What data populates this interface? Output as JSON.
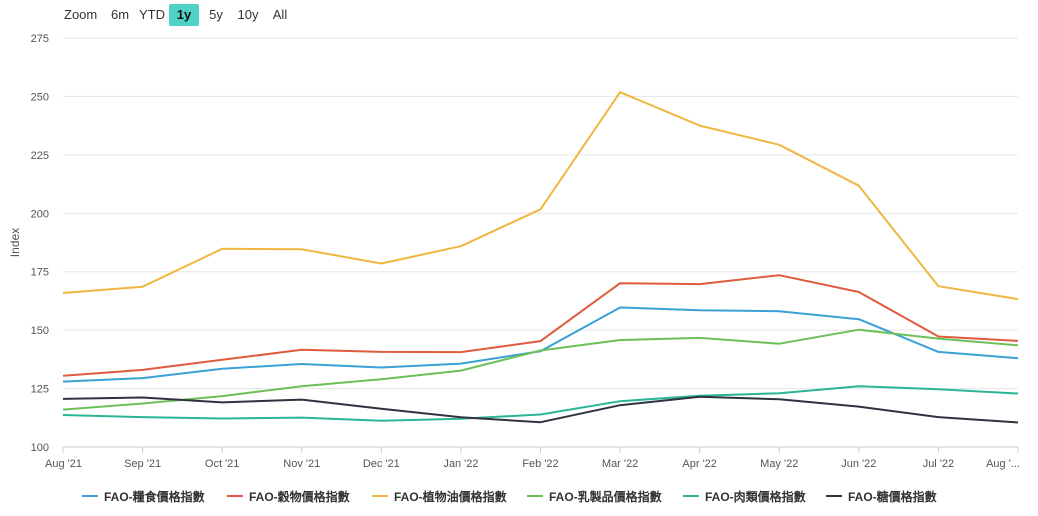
{
  "zoom": {
    "label": "Zoom",
    "options": [
      "6m",
      "YTD",
      "1y",
      "5y",
      "10y",
      "All"
    ],
    "selected": "1y"
  },
  "chart_data": {
    "type": "line",
    "title": "",
    "xlabel": "",
    "ylabel": "Index",
    "ylim": [
      100,
      275
    ],
    "yticks": [
      100,
      125,
      150,
      175,
      200,
      225,
      250,
      275
    ],
    "categories": [
      "Aug '21",
      "Sep '21",
      "Oct '21",
      "Nov '21",
      "Dec '21",
      "Jan '22",
      "Feb '22",
      "Mar '22",
      "Apr '22",
      "May '22",
      "Jun '22",
      "Jul '22",
      "Aug '..."
    ],
    "grid": true,
    "legend_position": "bottom",
    "series": [
      {
        "name": "FAO-糧食價格指數",
        "color": "#3aa0d5",
        "values": [
          128.0,
          129.5,
          133.5,
          135.5,
          134.0,
          135.7,
          141.0,
          159.7,
          158.5,
          158.1,
          154.7,
          140.7,
          138.0
        ]
      },
      {
        "name": "FAO-穀物價格指數",
        "color": "#e05a3f",
        "values": [
          130.5,
          133.0,
          137.3,
          141.6,
          140.7,
          140.6,
          145.3,
          170.1,
          169.7,
          173.5,
          166.3,
          147.3,
          145.4
        ]
      },
      {
        "name": "FAO-植物油價格指數",
        "color": "#f0b740",
        "values": [
          165.9,
          168.6,
          184.8,
          184.6,
          178.5,
          185.9,
          201.7,
          251.8,
          237.5,
          229.3,
          211.8,
          168.8,
          163.3
        ]
      },
      {
        "name": "FAO-乳製品價格指數",
        "color": "#6cc05a",
        "values": [
          116.0,
          118.6,
          121.8,
          126.0,
          129.0,
          132.7,
          141.3,
          145.8,
          146.7,
          144.2,
          150.2,
          146.4,
          143.5
        ]
      },
      {
        "name": "FAO-肉類價格指數",
        "color": "#2bb595",
        "values": [
          113.7,
          112.8,
          112.2,
          112.6,
          111.2,
          112.1,
          113.9,
          119.6,
          121.9,
          123.0,
          126.0,
          124.7,
          122.9
        ]
      },
      {
        "name": "FAO-糖價格指數",
        "color": "#2f3340",
        "values": [
          120.6,
          121.2,
          119.1,
          120.3,
          116.4,
          112.7,
          110.6,
          117.9,
          121.5,
          120.4,
          117.3,
          112.8,
          110.5
        ]
      }
    ]
  }
}
